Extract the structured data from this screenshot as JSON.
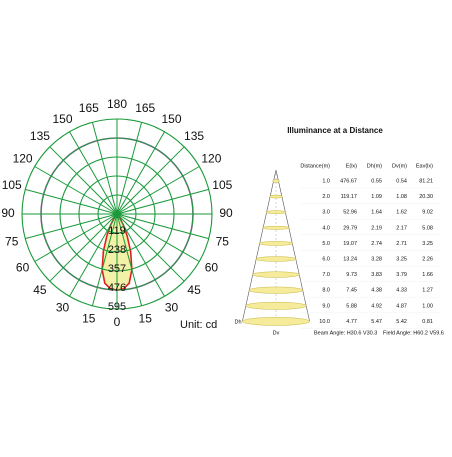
{
  "chart_data": {
    "type": "polar",
    "angle_ticks": [
      0,
      15,
      30,
      45,
      60,
      75,
      90,
      105,
      120,
      135,
      150,
      165,
      180
    ],
    "rlim": [
      0,
      595
    ],
    "rticks": [
      119,
      238,
      357,
      476,
      595
    ],
    "unit_label": "Unit: cd",
    "grid": true,
    "angles": [
      0,
      5,
      10,
      15,
      20,
      25,
      30,
      35,
      40,
      45
    ],
    "series": [
      {
        "color": "#e02020",
        "fill": "#f3f0a8",
        "values": [
          477,
          470,
          440,
          360,
          250,
          150,
          80,
          35,
          12,
          0
        ]
      }
    ]
  },
  "illuminance": {
    "title": "Illuminance at a Distance",
    "header": [
      "Distance(m)",
      "E(lx)",
      "Dh(m)",
      "Dv(m)",
      "Eav(lx)"
    ],
    "rows": [
      [
        "1.0",
        "476.67",
        "0.55",
        "0.54",
        "81.21"
      ],
      [
        "2.0",
        "119.17",
        "1.09",
        "1.08",
        "20.30"
      ],
      [
        "3.0",
        "52.96",
        "1.64",
        "1.62",
        "9.02"
      ],
      [
        "4.0",
        "29.79",
        "2.19",
        "2.17",
        "5.08"
      ],
      [
        "5.0",
        "19.07",
        "2.74",
        "2.71",
        "3.25"
      ],
      [
        "6.0",
        "13.24",
        "3.28",
        "3.25",
        "2.26"
      ],
      [
        "7.0",
        "9.73",
        "3.83",
        "3.79",
        "1.66"
      ],
      [
        "8.0",
        "7.45",
        "4.38",
        "4.33",
        "1.27"
      ],
      [
        "9.0",
        "5.88",
        "4.92",
        "4.87",
        "1.00"
      ],
      [
        "10.0",
        "4.77",
        "5.47",
        "5.42",
        "0.81"
      ]
    ],
    "dh_label": "Dh",
    "dv_label": "Dv",
    "beam_angle": "Beam Angle: H30.6 V30.3",
    "field_angle": "Field Angle: H60.2 V59.6"
  }
}
